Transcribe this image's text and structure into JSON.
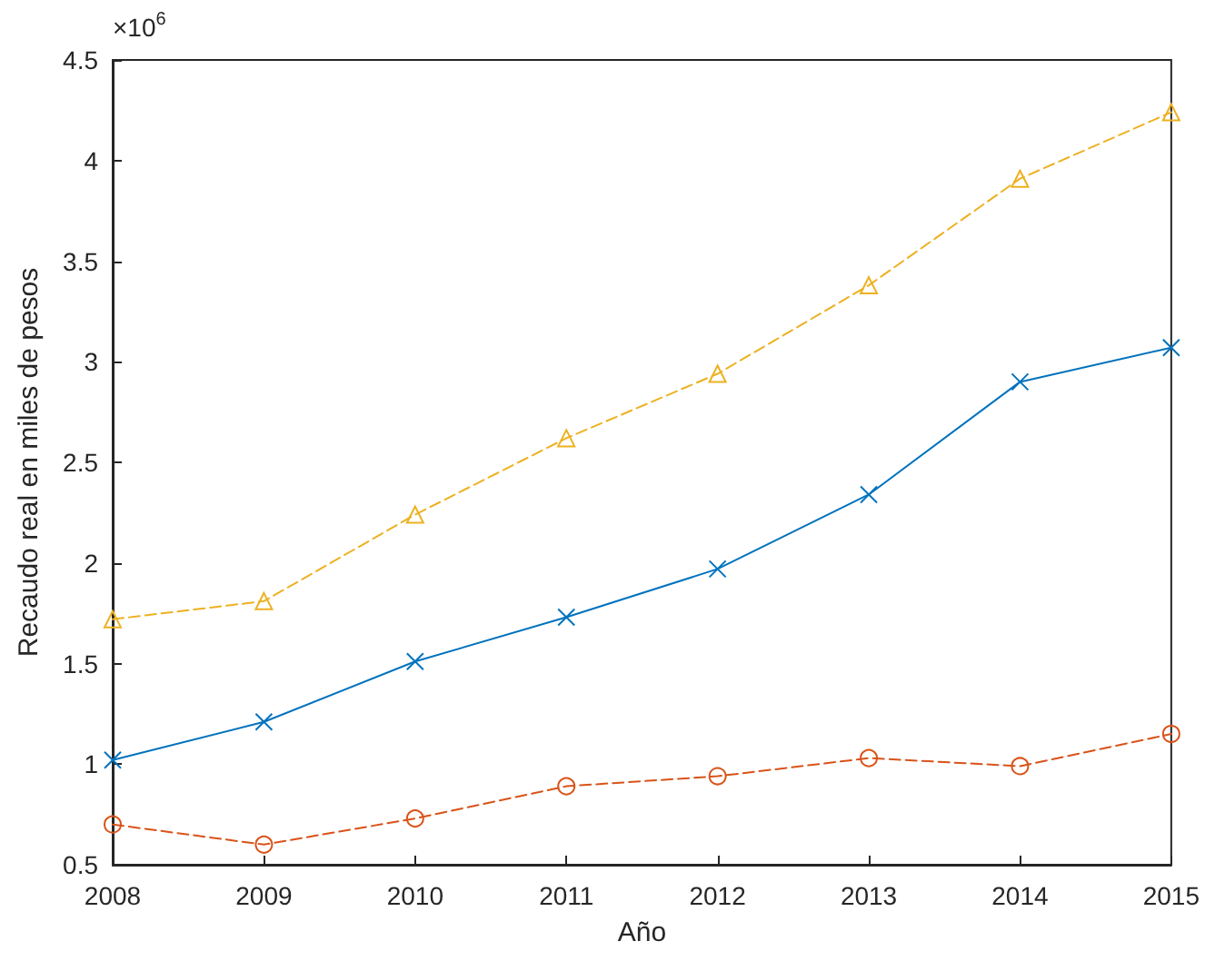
{
  "chart_data": {
    "type": "line",
    "xlabel": "Año",
    "ylabel": "Recaudo real en miles de pesos",
    "annotations": [
      "×10$^{6}$"
    ],
    "x": [
      2008,
      2009,
      2010,
      2011,
      2012,
      2013,
      2014,
      2015
    ],
    "xlim": [
      2008,
      2015
    ],
    "xticks": [
      2008,
      2009,
      2010,
      2011,
      2012,
      2013,
      2014,
      2015
    ],
    "ylim": [
      0.5,
      4.5
    ],
    "yticks": [
      0.5,
      1,
      1.5,
      2,
      2.5,
      3,
      3.5,
      4,
      4.5
    ],
    "grid": false,
    "series": [
      {
        "color": "#0072bd",
        "marker": "cross",
        "line_style": "solid",
        "values": [
          1.02,
          1.21,
          1.51,
          1.73,
          1.97,
          2.34,
          2.9,
          3.07
        ]
      },
      {
        "color": "#d95319",
        "marker": "circle",
        "line_style": "dashed",
        "values": [
          0.7,
          0.6,
          0.73,
          0.89,
          0.94,
          1.03,
          0.99,
          1.15
        ]
      },
      {
        "color": "#edb120",
        "marker": "triangle",
        "line_style": "dashed",
        "values": [
          1.72,
          1.81,
          2.24,
          2.62,
          2.94,
          3.38,
          3.91,
          4.24
        ]
      }
    ]
  }
}
